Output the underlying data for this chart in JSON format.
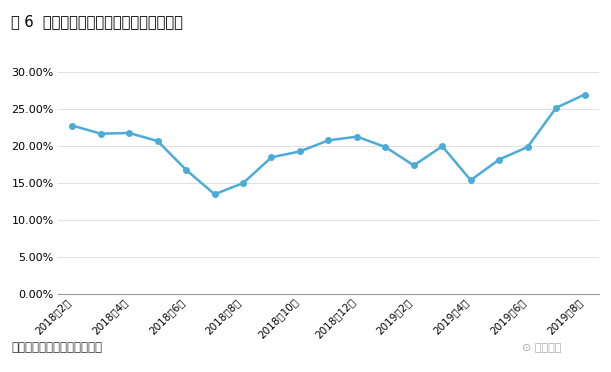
{
  "title": "图 6  个人信贷业务的各月金额续贷率走势",
  "x_labels": [
    "2018年2月",
    "2018年4月",
    "2018年6月",
    "2018年8月",
    "2018年10月",
    "2018年12月",
    "2019年2月",
    "2019年4月",
    "2019年6月",
    "2019年8月"
  ],
  "y_values": [
    0.228,
    0.217,
    0.218,
    0.207,
    0.168,
    0.135,
    0.15,
    0.185,
    0.193,
    0.208,
    0.213,
    0.199,
    0.174,
    0.2,
    0.154,
    0.182,
    0.199,
    0.252,
    0.27
  ],
  "x_positions": [
    0,
    1,
    2,
    3,
    4,
    5,
    6,
    7,
    8,
    9,
    10,
    11,
    12,
    13,
    14,
    15,
    16,
    17,
    18
  ],
  "tick_positions": [
    0,
    2,
    4,
    6,
    8,
    10,
    12,
    14,
    16,
    18
  ],
  "line_color": "#4bacd6",
  "marker_color": "#4bacd6",
  "background_color": "#ffffff",
  "title_fontsize": 10.5,
  "footer_text": "数据来源：网贷之家研究中心",
  "footer_logo": "⊙ 网贷之家",
  "ylim": [
    0.0,
    0.32
  ],
  "yticks": [
    0.0,
    0.05,
    0.1,
    0.15,
    0.2,
    0.25,
    0.3
  ],
  "top_line_color": "#1a6bbf",
  "bottom_line_color": "#1a6bbf",
  "grid_color": "#e0e0e0",
  "axis_color": "#999999",
  "tick_label_fontsize": 7.5,
  "ytick_label_fontsize": 8.0
}
